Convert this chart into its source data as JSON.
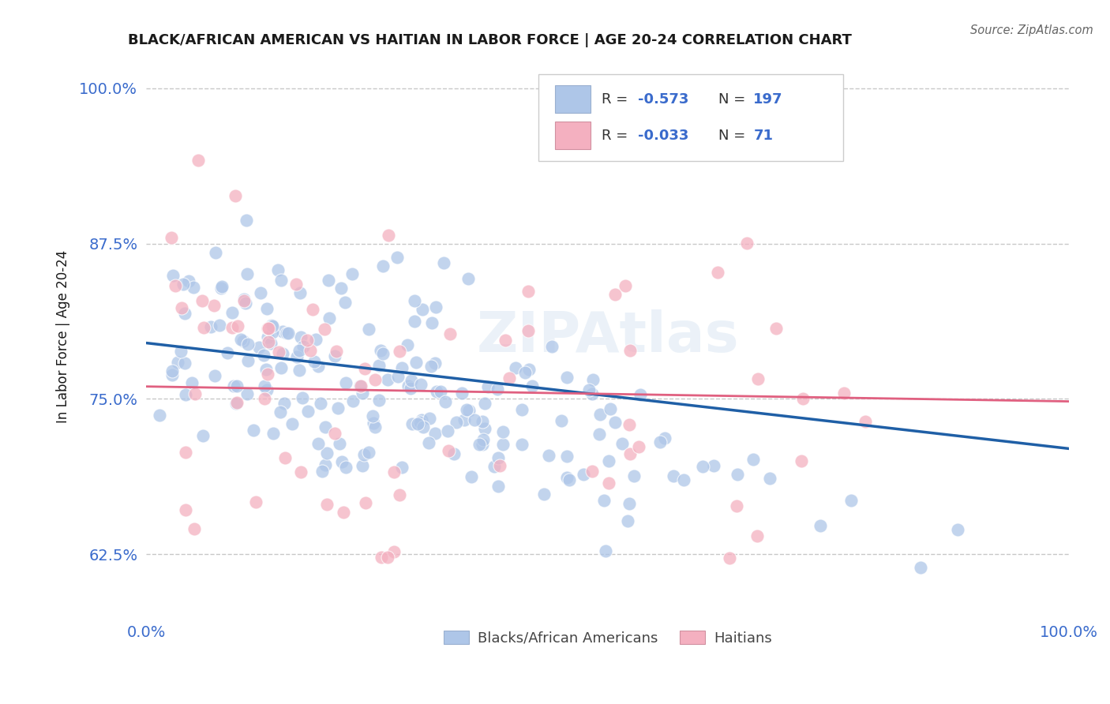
{
  "title": "BLACK/AFRICAN AMERICAN VS HAITIAN IN LABOR FORCE | AGE 20-24 CORRELATION CHART",
  "source": "Source: ZipAtlas.com",
  "ylabel": "In Labor Force | Age 20-24",
  "xlim": [
    0.0,
    1.0
  ],
  "ylim": [
    0.575,
    1.025
  ],
  "yticks": [
    0.625,
    0.75,
    0.875,
    1.0
  ],
  "ytick_labels": [
    "62.5%",
    "75.0%",
    "87.5%",
    "100.0%"
  ],
  "xtick_labels": [
    "0.0%",
    "100.0%"
  ],
  "xticks": [
    0.0,
    1.0
  ],
  "blue_R": -0.573,
  "blue_N": 197,
  "pink_R": -0.033,
  "pink_N": 71,
  "blue_color": "#aec6e8",
  "blue_line_color": "#1f5fa6",
  "pink_color": "#f4b0c0",
  "pink_line_color": "#e06080",
  "background_color": "#ffffff",
  "grid_color": "#c8c8c8",
  "title_color": "#1a1a1a",
  "axis_label_color": "#3a6bcc",
  "watermark": "ZIPAtlas",
  "legend_label_blue": "Blacks/African Americans",
  "legend_label_pink": "Haitians"
}
